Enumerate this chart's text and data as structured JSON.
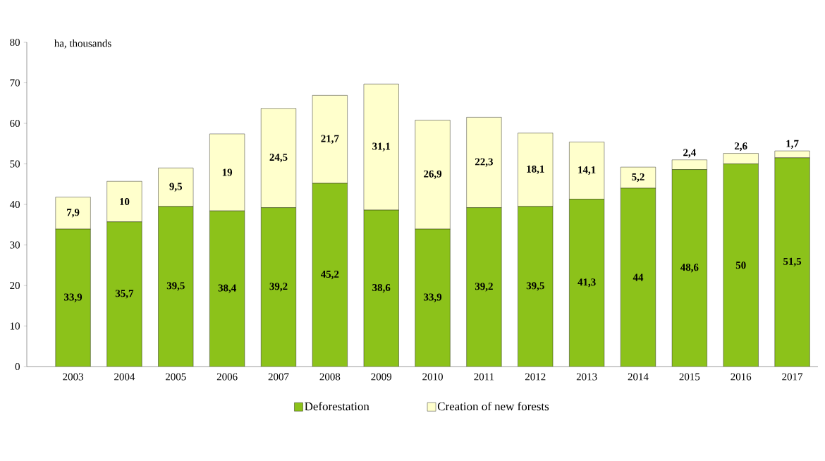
{
  "chart_data": {
    "type": "bar",
    "stacked": true,
    "ylabel": "ha, thousands",
    "categories": [
      "2003",
      "2004",
      "2005",
      "2006",
      "2007",
      "2008",
      "2009",
      "2010",
      "2011",
      "2012",
      "2013",
      "2014",
      "2015",
      "2016",
      "2017"
    ],
    "series": [
      {
        "name": "Deforestation",
        "color": "#8cc21a",
        "values": [
          33.9,
          35.7,
          39.5,
          38.4,
          39.2,
          45.2,
          38.6,
          33.9,
          39.2,
          39.5,
          41.3,
          44,
          48.6,
          50,
          51.5
        ],
        "value_labels": [
          "33,9",
          "35,7",
          "39,5",
          "38,4",
          "39,2",
          "45,2",
          "38,6",
          "33,9",
          "39,2",
          "39,5",
          "41,3",
          "44",
          "48,6",
          "50",
          "51,5"
        ]
      },
      {
        "name": "Creation of new forests",
        "color": "#ffffcc",
        "values": [
          7.9,
          10,
          9.5,
          19,
          24.5,
          21.7,
          31.1,
          26.9,
          22.3,
          18.1,
          14.1,
          5.2,
          2.4,
          2.6,
          1.7
        ],
        "value_labels": [
          "7,9",
          "10",
          "9,5",
          "19",
          "24,5",
          "21,7",
          "31,1",
          "26,9",
          "22,3",
          "18,1",
          "14,1",
          "5,2",
          "2,4",
          "2,6",
          "1,7"
        ]
      }
    ],
    "ylim": [
      0,
      80
    ],
    "yticks": [
      0,
      10,
      20,
      30,
      40,
      50,
      60,
      70,
      80
    ],
    "legend": "bottom",
    "grid": false
  }
}
